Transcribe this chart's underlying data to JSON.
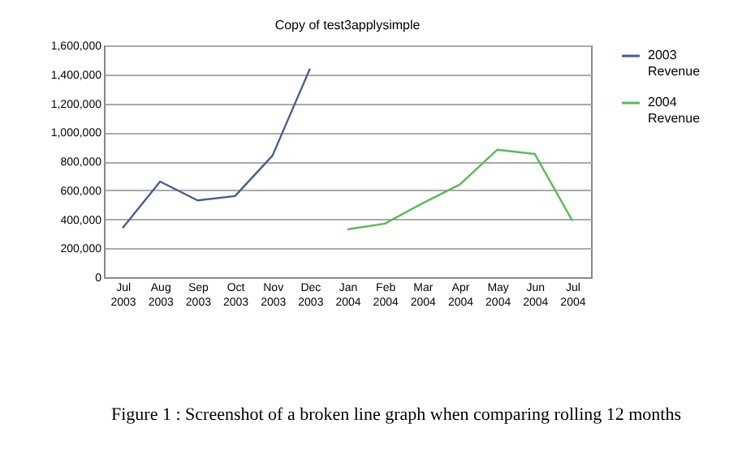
{
  "chart_data": {
    "type": "line",
    "title": "Copy of test3applysimple",
    "categories": [
      "Jul 2003",
      "Aug 2003",
      "Sep 2003",
      "Oct 2003",
      "Nov 2003",
      "Dec 2003",
      "Jan 2004",
      "Feb 2004",
      "Mar 2004",
      "Apr 2004",
      "May 2004",
      "Jun 2004",
      "Jul 2004"
    ],
    "series": [
      {
        "name": "2003 Revenue",
        "color": "#4a5e8c",
        "values": [
          340000,
          660000,
          530000,
          560000,
          840000,
          1440000,
          null,
          null,
          null,
          null,
          null,
          null,
          null
        ]
      },
      {
        "name": "2004 Revenue",
        "color": "#5cb85c",
        "values": [
          null,
          null,
          null,
          null,
          null,
          null,
          330000,
          370000,
          510000,
          640000,
          880000,
          850000,
          390000
        ]
      }
    ],
    "ylim": [
      0,
      1600000
    ],
    "yticks": [
      0,
      {
        "value": 200000,
        "label": "200,000"
      },
      {
        "value": 400000,
        "label": "400,000"
      },
      {
        "value": 600000,
        "label": "600,000"
      },
      {
        "value": 800000,
        "label": "800,000"
      },
      {
        "value": 1000000,
        "label": "1,000,000"
      },
      {
        "value": 1200000,
        "label": "1,200,000"
      },
      {
        "value": 1400000,
        "label": "1,400,000"
      },
      {
        "value": 1600000,
        "label": "1,600,000"
      }
    ],
    "grid": "y",
    "legend": "right",
    "marker": "none",
    "line_style": "solid",
    "annotations": [
      "Figure 1 : Screenshot of a broken line graph when comparing rolling 12 months"
    ]
  }
}
